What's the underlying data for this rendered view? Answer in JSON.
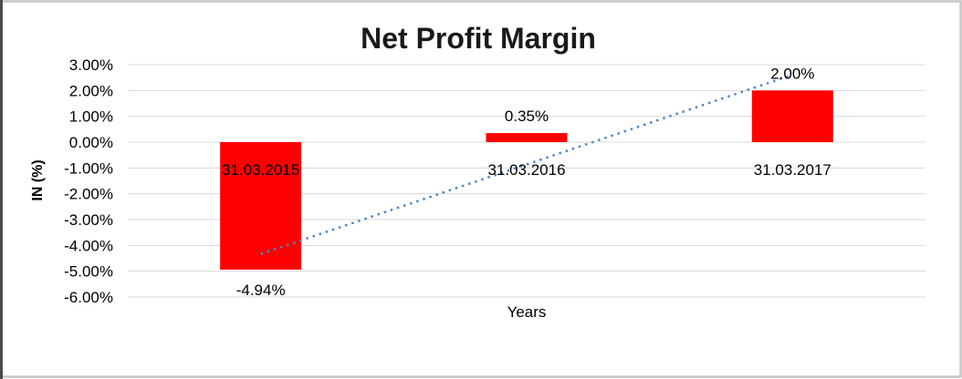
{
  "window": {
    "background": "#ffffff",
    "frame_border_color": "#c6c6c6",
    "frame_left_border_color": "#4a4a4a"
  },
  "chart_data": {
    "type": "bar",
    "title": "Net Profit Margin",
    "xlabel": "Years",
    "ylabel": "IN (%)",
    "categories": [
      "31.03.2015",
      "31.03.2016",
      "31.03.2017"
    ],
    "values": [
      -4.94,
      0.35,
      2.0
    ],
    "data_labels": [
      "-4.94%",
      "0.35%",
      "2.00%"
    ],
    "ylim": [
      -6,
      3
    ],
    "ytick_step": 1,
    "ytick_labels": [
      "3.00%",
      "2.00%",
      "1.00%",
      "0.00%",
      "-1.00%",
      "-2.00%",
      "-3.00%",
      "-4.00%",
      "-5.00%",
      "-6.00%"
    ],
    "grid": true,
    "legend": "none",
    "bar_color": "#ff0000",
    "gridline_color": "#d9d9d9",
    "trendline": {
      "type": "linear",
      "style": "dotted",
      "color": "#4f86c6",
      "span": "first-to-last-category"
    }
  }
}
